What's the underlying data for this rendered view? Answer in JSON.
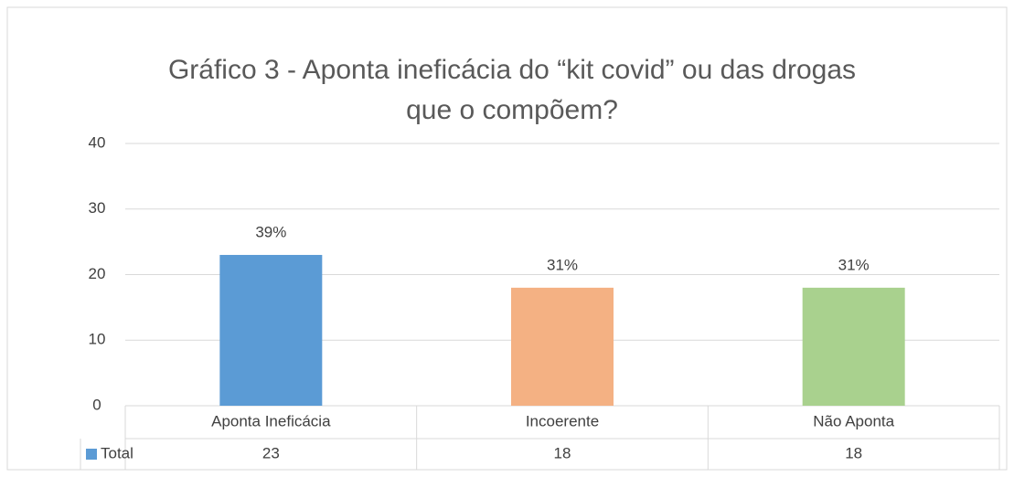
{
  "chart_data": {
    "type": "bar",
    "title": "Gráfico 3 - Aponta ineficácia do “kit covid” ou das drogas que o compõem?",
    "categories": [
      "Aponta Ineficácia",
      "Incoerente",
      "Não Aponta"
    ],
    "series_name": "Total",
    "values": [
      23,
      18,
      18
    ],
    "percent_labels": [
      "39%",
      "31%",
      "31%"
    ],
    "colors": [
      "#5b9bd5",
      "#f4b183",
      "#a9d18e"
    ],
    "ylim": [
      0,
      40
    ],
    "yticks": [
      0,
      10,
      20,
      30,
      40
    ],
    "grid": true
  }
}
